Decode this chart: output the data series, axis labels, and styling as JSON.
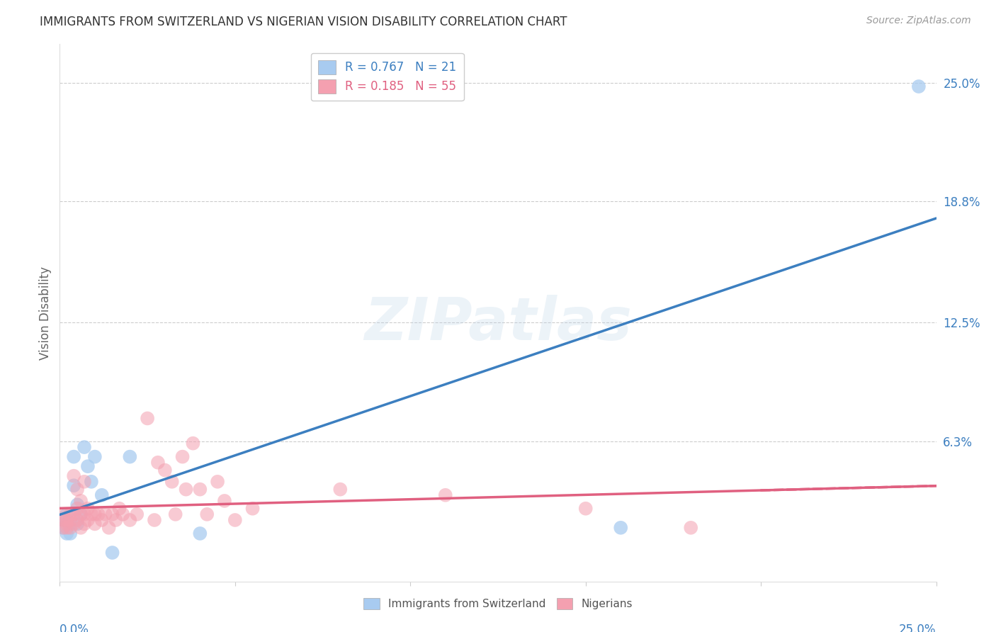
{
  "title": "IMMIGRANTS FROM SWITZERLAND VS NIGERIAN VISION DISABILITY CORRELATION CHART",
  "source": "Source: ZipAtlas.com",
  "ylabel": "Vision Disability",
  "ytick_labels": [
    "25.0%",
    "18.8%",
    "12.5%",
    "6.3%"
  ],
  "ytick_values": [
    0.25,
    0.188,
    0.125,
    0.063
  ],
  "xlim": [
    0.0,
    0.25
  ],
  "ylim": [
    -0.01,
    0.27
  ],
  "legend1_label": "R = 0.767   N = 21",
  "legend2_label": "R = 0.185   N = 55",
  "color_blue": "#A8CBF0",
  "color_pink": "#F4A0B0",
  "color_blue_line": "#3C7FC0",
  "color_pink_line": "#E06080",
  "background_color": "#FFFFFF",
  "swiss_points": [
    [
      0.001,
      0.018
    ],
    [
      0.001,
      0.022
    ],
    [
      0.002,
      0.015
    ],
    [
      0.002,
      0.025
    ],
    [
      0.003,
      0.02
    ],
    [
      0.003,
      0.015
    ],
    [
      0.004,
      0.055
    ],
    [
      0.004,
      0.04
    ],
    [
      0.005,
      0.03
    ],
    [
      0.005,
      0.02
    ],
    [
      0.006,
      0.025
    ],
    [
      0.007,
      0.06
    ],
    [
      0.008,
      0.05
    ],
    [
      0.009,
      0.042
    ],
    [
      0.01,
      0.055
    ],
    [
      0.012,
      0.035
    ],
    [
      0.015,
      0.005
    ],
    [
      0.02,
      0.055
    ],
    [
      0.04,
      0.015
    ],
    [
      0.16,
      0.018
    ],
    [
      0.245,
      0.248
    ]
  ],
  "nigerian_points": [
    [
      0.001,
      0.022
    ],
    [
      0.001,
      0.018
    ],
    [
      0.001,
      0.025
    ],
    [
      0.002,
      0.02
    ],
    [
      0.002,
      0.022
    ],
    [
      0.002,
      0.018
    ],
    [
      0.003,
      0.025
    ],
    [
      0.003,
      0.018
    ],
    [
      0.003,
      0.022
    ],
    [
      0.004,
      0.045
    ],
    [
      0.004,
      0.025
    ],
    [
      0.004,
      0.02
    ],
    [
      0.005,
      0.038
    ],
    [
      0.005,
      0.022
    ],
    [
      0.005,
      0.028
    ],
    [
      0.006,
      0.025
    ],
    [
      0.006,
      0.018
    ],
    [
      0.006,
      0.032
    ],
    [
      0.007,
      0.042
    ],
    [
      0.007,
      0.025
    ],
    [
      0.007,
      0.02
    ],
    [
      0.008,
      0.028
    ],
    [
      0.008,
      0.022
    ],
    [
      0.009,
      0.025
    ],
    [
      0.01,
      0.025
    ],
    [
      0.01,
      0.02
    ],
    [
      0.011,
      0.025
    ],
    [
      0.012,
      0.022
    ],
    [
      0.013,
      0.025
    ],
    [
      0.014,
      0.018
    ],
    [
      0.015,
      0.025
    ],
    [
      0.016,
      0.022
    ],
    [
      0.017,
      0.028
    ],
    [
      0.018,
      0.025
    ],
    [
      0.02,
      0.022
    ],
    [
      0.022,
      0.025
    ],
    [
      0.025,
      0.075
    ],
    [
      0.027,
      0.022
    ],
    [
      0.028,
      0.052
    ],
    [
      0.03,
      0.048
    ],
    [
      0.032,
      0.042
    ],
    [
      0.033,
      0.025
    ],
    [
      0.035,
      0.055
    ],
    [
      0.036,
      0.038
    ],
    [
      0.038,
      0.062
    ],
    [
      0.04,
      0.038
    ],
    [
      0.042,
      0.025
    ],
    [
      0.045,
      0.042
    ],
    [
      0.047,
      0.032
    ],
    [
      0.05,
      0.022
    ],
    [
      0.055,
      0.028
    ],
    [
      0.08,
      0.038
    ],
    [
      0.11,
      0.035
    ],
    [
      0.15,
      0.028
    ],
    [
      0.18,
      0.018
    ]
  ],
  "swiss_line": [
    [
      0.0,
      -0.005
    ],
    [
      0.25,
      0.16
    ]
  ],
  "nigerian_line_solid": [
    [
      0.0,
      0.018
    ],
    [
      0.25,
      0.052
    ]
  ],
  "nigerian_line_dashed": [
    [
      0.2,
      0.048
    ],
    [
      0.28,
      0.056
    ]
  ],
  "watermark": "ZIPatlas",
  "grid_color": "#CCCCCC",
  "xtick_positions": [
    0.0,
    0.05,
    0.1,
    0.15,
    0.2,
    0.25
  ]
}
